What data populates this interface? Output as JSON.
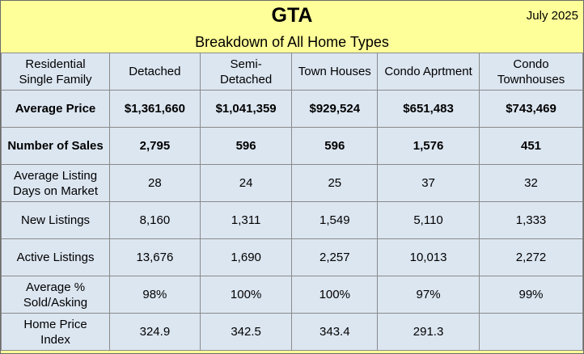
{
  "header": {
    "title": "GTA",
    "date": "July 2025",
    "subtitle": "Breakdown of All Home Types"
  },
  "table": {
    "headers": [
      "Residential\nSingle Family",
      "Detached",
      "Semi-\nDetached",
      "Town Houses",
      "Condo Aprtment",
      "Condo\nTownhouses"
    ],
    "rows": [
      {
        "label": "Average Price",
        "bold": true,
        "cells": [
          "$1,361,660",
          "$1,041,359",
          "$929,524",
          "$651,483",
          "$743,469"
        ]
      },
      {
        "label": "Number of Sales",
        "bold": true,
        "cells": [
          "2,795",
          "596",
          "596",
          "1,576",
          "451"
        ]
      },
      {
        "label": "Average Listing\nDays on Market",
        "bold": false,
        "cells": [
          "28",
          "24",
          "25",
          "37",
          "32"
        ]
      },
      {
        "label": "New Listings",
        "bold": false,
        "cells": [
          "8,160",
          "1,311",
          "1,549",
          "5,110",
          "1,333"
        ]
      },
      {
        "label": "Active Listings",
        "bold": false,
        "cells": [
          "13,676",
          "1,690",
          "2,257",
          "10,013",
          "2,272"
        ]
      },
      {
        "label": "Average %\nSold/Asking",
        "bold": false,
        "cells": [
          "98%",
          "100%",
          "100%",
          "97%",
          "99%"
        ]
      },
      {
        "label": "Home Price\nIndex",
        "bold": false,
        "cells": [
          "324.9",
          "342.5",
          "343.4",
          "291.3",
          ""
        ]
      }
    ]
  },
  "colors": {
    "header_bg": "#ffff99",
    "cell_bg": "#dce6f1",
    "border": "#8a8a8a"
  }
}
